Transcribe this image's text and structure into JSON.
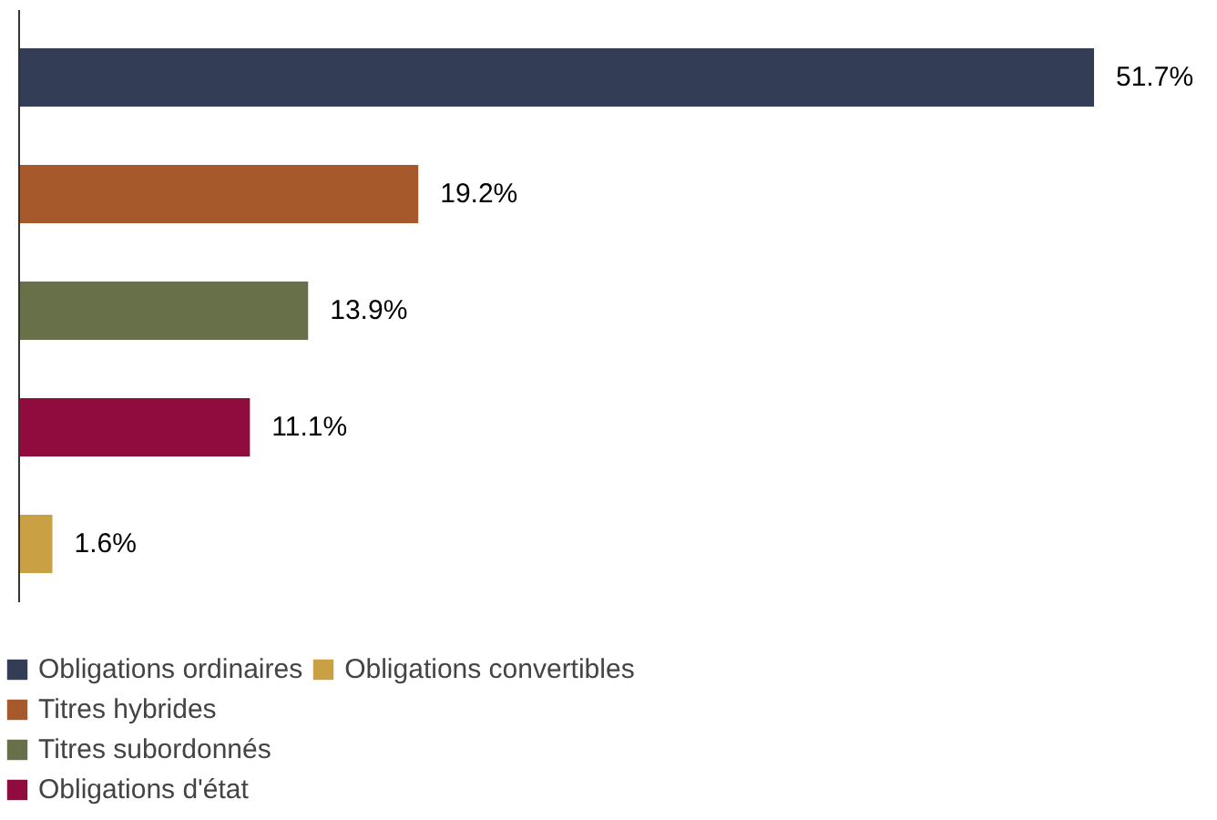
{
  "chart_data": {
    "type": "bar",
    "orientation": "horizontal",
    "stacked": true,
    "categories": [
      null,
      null,
      null,
      null,
      null
    ],
    "series": [
      {
        "name": "Obligations ordinaires",
        "color": "#343d56",
        "values": [
          51.7,
          null,
          null,
          null,
          null
        ],
        "value_labels": [
          "51.7%",
          null,
          null,
          null,
          null
        ]
      },
      {
        "name": "Titres hybrides",
        "color": "#a65a2b",
        "values": [
          null,
          19.2,
          null,
          null,
          null
        ],
        "value_labels": [
          null,
          "19.2%",
          null,
          null,
          null
        ]
      },
      {
        "name": "Titres subordonnés",
        "color": "#68704a",
        "values": [
          null,
          null,
          13.9,
          null,
          null
        ],
        "value_labels": [
          null,
          null,
          "13.9%",
          null,
          null
        ]
      },
      {
        "name": "Obligations d'état",
        "color": "#900c3e",
        "values": [
          null,
          null,
          null,
          11.1,
          null
        ],
        "value_labels": [
          null,
          null,
          null,
          "11.1%",
          null
        ]
      },
      {
        "name": "Obligations convertibles",
        "color": "#c9a043",
        "values": [
          null,
          null,
          null,
          null,
          1.6
        ],
        "value_labels": [
          null,
          null,
          null,
          null,
          "1.6%"
        ]
      }
    ],
    "legend": "bottom",
    "grid": false
  }
}
